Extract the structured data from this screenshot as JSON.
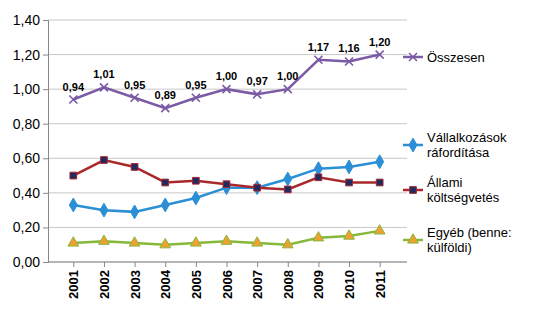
{
  "chart_data": {
    "type": "line",
    "categories": [
      "2001",
      "2002",
      "2003",
      "2004",
      "2005",
      "2006",
      "2007",
      "2008",
      "2009",
      "2010",
      "2011"
    ],
    "ylim": [
      0,
      1.4
    ],
    "yticks": [
      {
        "value": 0,
        "label": "0,00"
      },
      {
        "value": 0.2,
        "label": "0,20"
      },
      {
        "value": 0.4,
        "label": "0,40"
      },
      {
        "value": 0.6,
        "label": "0,60"
      },
      {
        "value": 0.8,
        "label": "0,80"
      },
      {
        "value": 1.0,
        "label": "1,00"
      },
      {
        "value": 1.2,
        "label": "1,20"
      },
      {
        "value": 1.4,
        "label": "1,40"
      }
    ],
    "grid": true,
    "legend": "right",
    "series": [
      {
        "name": "Összesen",
        "color": "#7b5aa6",
        "marker": "x",
        "data_labels": true,
        "values": [
          0.94,
          1.01,
          0.95,
          0.89,
          0.95,
          1.0,
          0.97,
          1.0,
          1.17,
          1.16,
          1.2
        ],
        "value_labels": [
          "0,94",
          "1,01",
          "0,95",
          "0,89",
          "0,95",
          "1,00",
          "0,97",
          "1,00",
          "1,17",
          "1,16",
          "1,20"
        ]
      },
      {
        "name": "Vállalkozások ráfordítása",
        "color": "#2b8fd6",
        "marker": "diamond",
        "values": [
          0.33,
          0.3,
          0.29,
          0.33,
          0.37,
          0.43,
          0.43,
          0.48,
          0.54,
          0.55,
          0.58
        ]
      },
      {
        "name": "Állami költségvetés",
        "color": "#a8282c",
        "marker": "square",
        "values": [
          0.5,
          0.59,
          0.55,
          0.46,
          0.47,
          0.45,
          0.43,
          0.42,
          0.49,
          0.46,
          0.46
        ]
      },
      {
        "name": "Egyéb (benne: külföldi)",
        "color": "#86b83a",
        "marker": "triangle",
        "values": [
          0.11,
          0.12,
          0.11,
          0.1,
          0.11,
          0.12,
          0.11,
          0.1,
          0.14,
          0.15,
          0.18
        ]
      }
    ]
  }
}
